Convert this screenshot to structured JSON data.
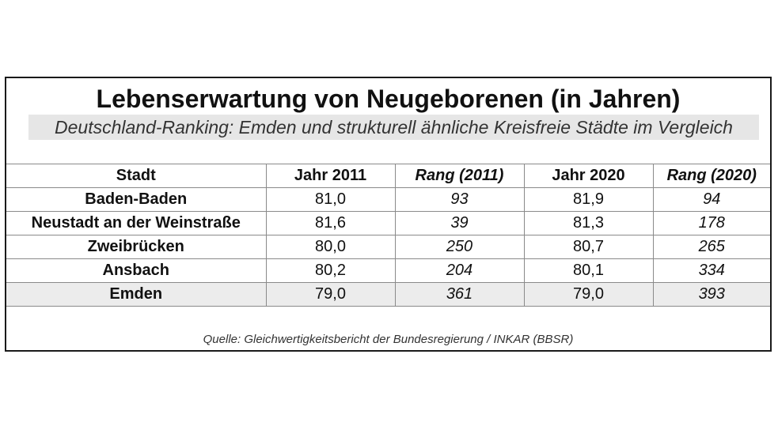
{
  "title": "Lebenserwartung von Neugeborenen (in Jahren)",
  "subtitle": "Deutschland-Ranking: Emden und strukturell ähnliche Kreisfreie Städte im Vergleich",
  "table": {
    "headers": [
      "Stadt",
      "Jahr 2011",
      "Rang (2011)",
      "Jahr 2020",
      "Rang (2020)"
    ],
    "rows": [
      [
        "Baden-Baden",
        "81,0",
        "93",
        "81,9",
        "94"
      ],
      [
        "Neustadt an der Weinstraße",
        "81,6",
        "39",
        "81,3",
        "178"
      ],
      [
        "Zweibrücken",
        "80,0",
        "250",
        "80,7",
        "265"
      ],
      [
        "Ansbach",
        "80,2",
        "204",
        "80,1",
        "334"
      ],
      [
        "Emden",
        "79,0",
        "361",
        "79,0",
        "393"
      ]
    ]
  },
  "source": "Quelle: Gleichwertigkeitsbericht der Bundesregierung / INKAR (BBSR)",
  "colors": {
    "highlight_row": "#ececec",
    "subtitle_band": "#e6e6e6",
    "frame_border": "#1a1a1a"
  }
}
